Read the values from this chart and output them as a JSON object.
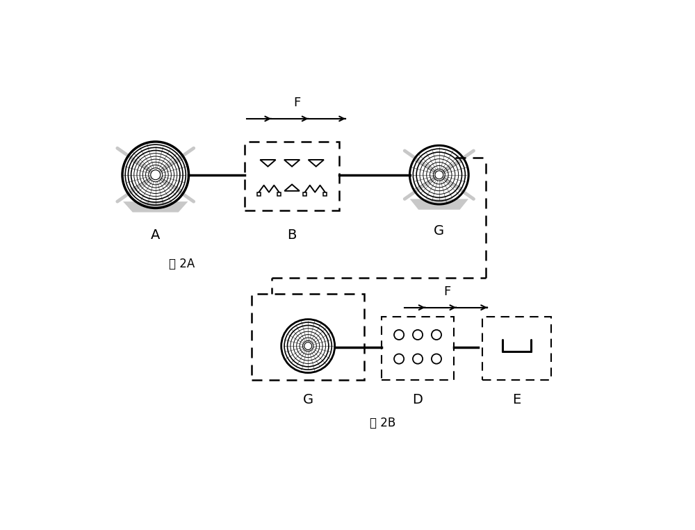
{
  "bg_color": "#ffffff",
  "fig_width": 10.0,
  "fig_height": 7.63,
  "dpi": 100,
  "label_A": "A",
  "label_B": "B",
  "label_G_top": "G",
  "label_G_bot": "G",
  "label_D": "D",
  "label_E": "E",
  "label_F": "F",
  "label_fig2A": "图 2A",
  "label_fig2B": "图 2B",
  "gray_stand": "#c8c8c8",
  "black": "#000000"
}
